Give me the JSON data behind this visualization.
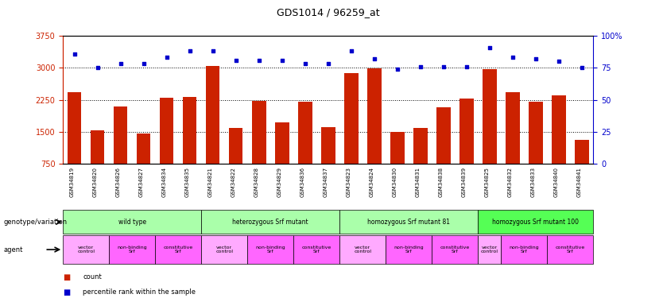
{
  "title": "GDS1014 / 96259_at",
  "samples": [
    "GSM34819",
    "GSM34820",
    "GSM34826",
    "GSM34827",
    "GSM34834",
    "GSM34835",
    "GSM34821",
    "GSM34822",
    "GSM34828",
    "GSM34829",
    "GSM34836",
    "GSM34837",
    "GSM34823",
    "GSM34824",
    "GSM34830",
    "GSM34831",
    "GSM34838",
    "GSM34839",
    "GSM34825",
    "GSM34832",
    "GSM34833",
    "GSM34840",
    "GSM34841"
  ],
  "counts": [
    2430,
    1540,
    2090,
    1470,
    2300,
    2310,
    3040,
    1590,
    2230,
    1720,
    2210,
    1610,
    2870,
    2980,
    1490,
    1590,
    2080,
    2280,
    2960,
    2420,
    2210,
    2360,
    1310
  ],
  "percentiles": [
    86,
    75,
    78,
    78,
    83,
    88,
    88,
    81,
    81,
    81,
    78,
    78,
    88,
    82,
    74,
    76,
    76,
    76,
    91,
    83,
    82,
    80,
    75
  ],
  "ylim_left": [
    750,
    3750
  ],
  "ylim_right": [
    0,
    100
  ],
  "yticks_left": [
    750,
    1500,
    2250,
    3000,
    3750
  ],
  "yticks_right": [
    0,
    25,
    50,
    75,
    100
  ],
  "bar_color": "#cc2200",
  "dot_color": "#0000cc",
  "background_color": "#ffffff",
  "genotype_groups": [
    {
      "label": "wild type",
      "start": 0,
      "end": 5,
      "color": "#aaffaa"
    },
    {
      "label": "heterozygous Srf mutant",
      "start": 6,
      "end": 11,
      "color": "#aaffaa"
    },
    {
      "label": "homozygous Srf mutant 81",
      "start": 12,
      "end": 17,
      "color": "#aaffaa"
    },
    {
      "label": "homozygous Srf mutant 100",
      "start": 18,
      "end": 22,
      "color": "#55ff55"
    }
  ],
  "agent_groups": [
    {
      "label": "vector\ncontrol",
      "start": 0,
      "end": 1,
      "color": "#ffaaff"
    },
    {
      "label": "non-binding\nSrf",
      "start": 2,
      "end": 3,
      "color": "#ff66ff"
    },
    {
      "label": "constitutive\nSrf",
      "start": 4,
      "end": 5,
      "color": "#ff66ff"
    },
    {
      "label": "vector\ncontrol",
      "start": 6,
      "end": 7,
      "color": "#ffaaff"
    },
    {
      "label": "non-binding\nSrf",
      "start": 8,
      "end": 9,
      "color": "#ff66ff"
    },
    {
      "label": "constitutive\nSrf",
      "start": 10,
      "end": 11,
      "color": "#ff66ff"
    },
    {
      "label": "vector\ncontrol",
      "start": 12,
      "end": 13,
      "color": "#ffaaff"
    },
    {
      "label": "non-binding\nSrf",
      "start": 14,
      "end": 15,
      "color": "#ff66ff"
    },
    {
      "label": "constitutive\nSrf",
      "start": 16,
      "end": 17,
      "color": "#ff66ff"
    },
    {
      "label": "vector\ncontrol",
      "start": 18,
      "end": 18,
      "color": "#ffaaff"
    },
    {
      "label": "non-binding\nSrf",
      "start": 19,
      "end": 20,
      "color": "#ff66ff"
    },
    {
      "label": "constitutive\nSrf",
      "start": 21,
      "end": 22,
      "color": "#ff66ff"
    }
  ],
  "legend_items": [
    {
      "color": "#cc2200",
      "label": "count"
    },
    {
      "color": "#0000cc",
      "label": "percentile rank within the sample"
    }
  ]
}
